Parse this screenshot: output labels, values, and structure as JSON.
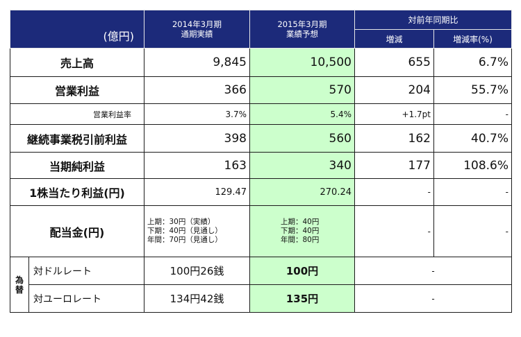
{
  "header": {
    "unit": "(億円)",
    "col_actual_1": "2014年3月期",
    "col_actual_2": "通期実績",
    "col_forecast_1": "2015年3月期",
    "col_forecast_2": "業績予想",
    "col_yoy": "対前年同期比",
    "col_change": "増減",
    "col_rate": "増減率(%)"
  },
  "rows": {
    "sales": {
      "label": "売上高",
      "actual": "9,845",
      "forecast": "10,500",
      "change": "655",
      "rate": "6.7%"
    },
    "op_income": {
      "label": "営業利益",
      "actual": "366",
      "forecast": "570",
      "change": "204",
      "rate": "55.7%"
    },
    "op_margin": {
      "label": "営業利益率",
      "actual": "3.7%",
      "forecast": "5.4%",
      "change": "+1.7pt",
      "rate": "-"
    },
    "pretax": {
      "label": "継続事業税引前利益",
      "actual": "398",
      "forecast": "560",
      "change": "162",
      "rate": "40.7%"
    },
    "net_income": {
      "label": "当期純利益",
      "actual": "163",
      "forecast": "340",
      "change": "177",
      "rate": "108.6%"
    },
    "eps": {
      "label": "1株当たり利益(円)",
      "actual": "129.47",
      "forecast": "270.24",
      "change": "-",
      "rate": "-"
    },
    "dividend": {
      "label": "配当金(円)",
      "actual": [
        "上期：30円（実績）",
        "下期：40円（見通し）",
        "年間：70円（見通し）"
      ],
      "forecast": [
        "上期：40円",
        "下期：40円",
        "年間：80円"
      ],
      "change": "-",
      "rate": "-"
    }
  },
  "fx": {
    "group_label_1": "為",
    "group_label_2": "替",
    "usd": {
      "label": "対ドルレート",
      "actual": "100円26銭",
      "forecast": "100円",
      "yoy": "-"
    },
    "eur": {
      "label": "対ユーロレート",
      "actual": "134円42銭",
      "forecast": "135円",
      "yoy": "-"
    }
  },
  "colors": {
    "header_bg": "#1c2a7a",
    "forecast_bg": "#ccffcc",
    "border": "#1a1a1a"
  }
}
